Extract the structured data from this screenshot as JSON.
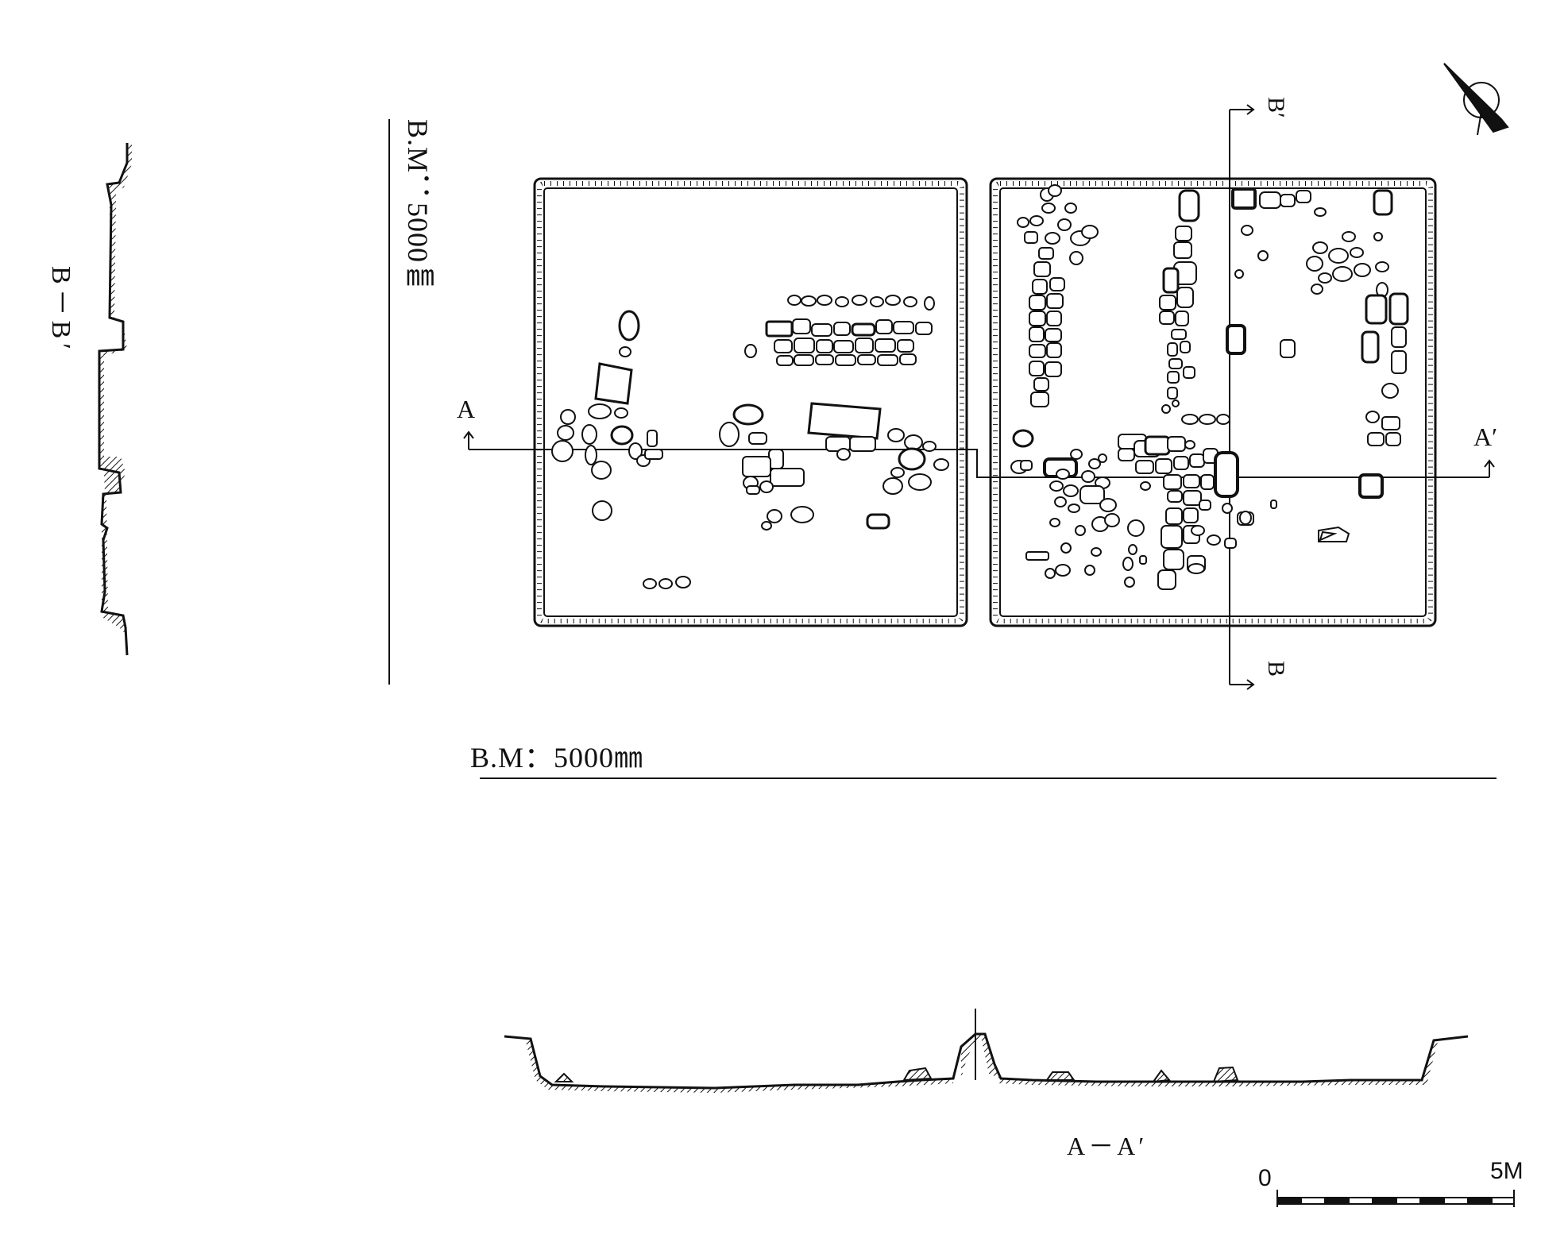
{
  "labels": {
    "benchmark_vertical": "B.M：5000㎜",
    "benchmark_horizontal": "B.M：5000㎜",
    "section_bb_title": "B－B′",
    "section_aa_title": "A－A′",
    "section_a_start": "A",
    "section_a_end": "A′",
    "section_b_start": "B",
    "section_b_end": "B′",
    "scale_zero": "0",
    "scale_max": "5M"
  },
  "icons": {
    "north_arrow": "north-arrow-icon"
  }
}
